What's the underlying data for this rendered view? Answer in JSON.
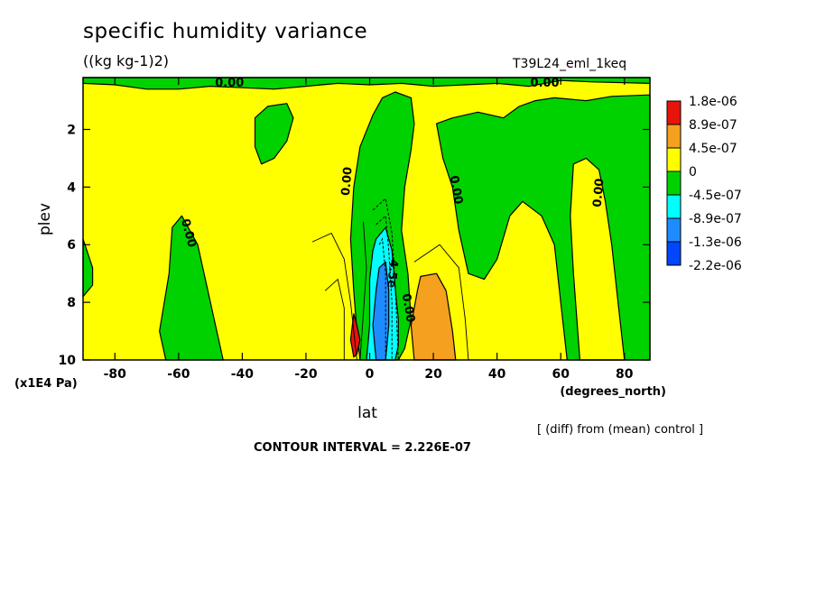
{
  "chart_data": {
    "type": "heatmap",
    "subtype": "filled contour",
    "title": "specific humidity variance",
    "subtitle": "((kg kg-1)2)",
    "experiment": "T39L24_eml_1keq",
    "xlabel": "lat",
    "x_unit": "(degrees_north)",
    "ylabel": "plev",
    "y_unit": "(x1E4 Pa)",
    "xlim": [
      -90,
      88
    ],
    "ylim": [
      10,
      0.2
    ],
    "y_reversed": true,
    "x_ticks": [
      "-80",
      "-60",
      "-40",
      "-20",
      "0",
      "20",
      "40",
      "60",
      "80"
    ],
    "x_tick_values": [
      -80,
      -60,
      -40,
      -20,
      0,
      20,
      40,
      60,
      80
    ],
    "y_ticks": [
      "2",
      "4",
      "6",
      "8",
      "10"
    ],
    "y_tick_values": [
      2,
      4,
      6,
      8,
      10
    ],
    "contour_interval_text": "CONTOUR INTERVAL = 2.226E-07",
    "note": "[ (diff) from (mean) control ]",
    "colorbar": {
      "labels": [
        "1.8e-06",
        "8.9e-07",
        "4.5e-07",
        "0",
        "-4.5e-07",
        "-8.9e-07",
        "-1.3e-06",
        "-2.2e-06"
      ],
      "colors": [
        "#e8140c",
        "#f5a01e",
        "#ffff00",
        "#00d200",
        "#00ffff",
        "#1e8cff",
        "#0046ff"
      ]
    },
    "regions": [
      {
        "name": "top-strip",
        "level": "negative-small",
        "color": "#00d200",
        "points": [
          [
            -90,
            0.2
          ],
          [
            88,
            0.2
          ],
          [
            88,
            0.4
          ],
          [
            70,
            0.35
          ],
          [
            60,
            0.3
          ],
          [
            50,
            0.5
          ],
          [
            40,
            0.4
          ],
          [
            30,
            0.45
          ],
          [
            20,
            0.5
          ],
          [
            10,
            0.4
          ],
          [
            0,
            0.45
          ],
          [
            -10,
            0.4
          ],
          [
            -20,
            0.5
          ],
          [
            -30,
            0.6
          ],
          [
            -40,
            0.55
          ],
          [
            -50,
            0.5
          ],
          [
            -60,
            0.6
          ],
          [
            -70,
            0.6
          ],
          [
            -80,
            0.45
          ],
          [
            -90,
            0.4
          ]
        ]
      },
      {
        "name": "sh-upper-blob",
        "level": "negative-small",
        "color": "#00d200",
        "points": [
          [
            -36,
            1.6
          ],
          [
            -32,
            1.2
          ],
          [
            -26,
            1.1
          ],
          [
            -24,
            1.6
          ],
          [
            -26,
            2.4
          ],
          [
            -30,
            3.0
          ],
          [
            -34,
            3.2
          ],
          [
            -36,
            2.6
          ]
        ]
      },
      {
        "name": "sh-column",
        "level": "negative-small",
        "color": "#00d200",
        "points": [
          [
            -62,
            5.4
          ],
          [
            -59,
            5.0
          ],
          [
            -54,
            6.0
          ],
          [
            -50,
            8.0
          ],
          [
            -46,
            10
          ],
          [
            -64,
            10
          ],
          [
            -66,
            9.0
          ],
          [
            -63,
            7.0
          ]
        ]
      },
      {
        "name": "sh-west-edge",
        "level": "negative-small",
        "color": "#00d200",
        "points": [
          [
            -90,
            5.8
          ],
          [
            -87,
            6.8
          ],
          [
            -87,
            7.4
          ],
          [
            -90,
            7.8
          ]
        ]
      },
      {
        "name": "eq-green",
        "level": "negative-small",
        "color": "#00d200",
        "points": [
          [
            4,
            0.9
          ],
          [
            8,
            0.7
          ],
          [
            13,
            0.9
          ],
          [
            14,
            1.8
          ],
          [
            13,
            2.7
          ],
          [
            11,
            4.0
          ],
          [
            10,
            5.5
          ],
          [
            12,
            7.0
          ],
          [
            13,
            8.6
          ],
          [
            11,
            9.6
          ],
          [
            9,
            10
          ],
          [
            -3,
            10
          ],
          [
            -4,
            9.0
          ],
          [
            -5,
            7.6
          ],
          [
            -6,
            5.8
          ],
          [
            -5,
            4.0
          ],
          [
            -3,
            2.6
          ],
          [
            1,
            1.5
          ]
        ]
      },
      {
        "name": "nh-mid",
        "level": "negative-small",
        "color": "#00d200",
        "points": [
          [
            21,
            1.8
          ],
          [
            26,
            1.6
          ],
          [
            34,
            1.4
          ],
          [
            42,
            1.6
          ],
          [
            47,
            1.2
          ],
          [
            52,
            1.0
          ],
          [
            58,
            0.9
          ],
          [
            68,
            1.0
          ],
          [
            76,
            0.85
          ],
          [
            88,
            0.8
          ],
          [
            88,
            10
          ],
          [
            62,
            10
          ],
          [
            60,
            8.0
          ],
          [
            58,
            6.0
          ],
          [
            54,
            5.0
          ],
          [
            48,
            4.5
          ],
          [
            44,
            5.0
          ],
          [
            40,
            6.5
          ],
          [
            36,
            7.2
          ],
          [
            31,
            7.0
          ],
          [
            28,
            5.5
          ],
          [
            26,
            4.0
          ],
          [
            23,
            3.0
          ]
        ]
      },
      {
        "name": "nh-yellow-notch",
        "level": "positive-small",
        "color": "#ffff00",
        "points": [
          [
            64,
            3.2
          ],
          [
            68,
            3.0
          ],
          [
            72,
            3.4
          ],
          [
            74,
            4.5
          ],
          [
            76,
            6.0
          ],
          [
            78,
            8.0
          ],
          [
            80,
            10
          ],
          [
            66,
            10
          ],
          [
            64,
            7.0
          ],
          [
            63,
            5.0
          ]
        ]
      },
      {
        "name": "eq-cyan",
        "level": "negative-mid",
        "color": "#00ffff",
        "points": [
          [
            2,
            5.8
          ],
          [
            5,
            5.4
          ],
          [
            7,
            6.2
          ],
          [
            8,
            7.5
          ],
          [
            9,
            8.6
          ],
          [
            9,
            9.5
          ],
          [
            8,
            10
          ],
          [
            -1,
            10
          ],
          [
            0,
            8.8
          ],
          [
            0,
            7.2
          ],
          [
            1,
            6.2
          ]
        ]
      },
      {
        "name": "eq-blue",
        "level": "negative-large",
        "color": "#1e8cff",
        "points": [
          [
            3,
            6.8
          ],
          [
            5,
            6.6
          ],
          [
            6,
            7.6
          ],
          [
            6,
            8.8
          ],
          [
            5,
            10
          ],
          [
            2,
            10
          ],
          [
            1,
            8.8
          ],
          [
            2,
            7.6
          ]
        ]
      },
      {
        "name": "nh-orange",
        "level": "positive-mid",
        "color": "#f5a01e",
        "points": [
          [
            16,
            7.1
          ],
          [
            21,
            7.0
          ],
          [
            24,
            7.6
          ],
          [
            26,
            9.0
          ],
          [
            27,
            10
          ],
          [
            14,
            10
          ],
          [
            13,
            8.8
          ],
          [
            15,
            7.6
          ]
        ]
      },
      {
        "name": "eq-red",
        "level": "positive-large",
        "color": "#e8140c",
        "points": [
          [
            -5,
            8.4
          ],
          [
            -4,
            8.8
          ],
          [
            -3,
            9.3
          ],
          [
            -4,
            9.8
          ],
          [
            -5,
            9.9
          ],
          [
            -6,
            9.3
          ]
        ]
      }
    ],
    "contour_labels": [
      {
        "text": "0.00",
        "lat": -44,
        "plev": 0.4,
        "angle": 0
      },
      {
        "text": "0.00",
        "lat": 55,
        "plev": 0.4,
        "angle": 0
      },
      {
        "text": "0.00",
        "lat": -7,
        "plev": 3.8,
        "angle": -85
      },
      {
        "text": "0.00",
        "lat": -57,
        "plev": 5.6,
        "angle": 75
      },
      {
        "text": "0.00",
        "lat": 27,
        "plev": 4.1,
        "angle": 80
      },
      {
        "text": "0.00",
        "lat": 72,
        "plev": 4.2,
        "angle": -85
      },
      {
        "text": "0.00",
        "lat": 12,
        "plev": 8.2,
        "angle": 80
      },
      {
        "text": "4.5e",
        "lat": 7,
        "plev": 7.0,
        "angle": 95
      }
    ]
  }
}
